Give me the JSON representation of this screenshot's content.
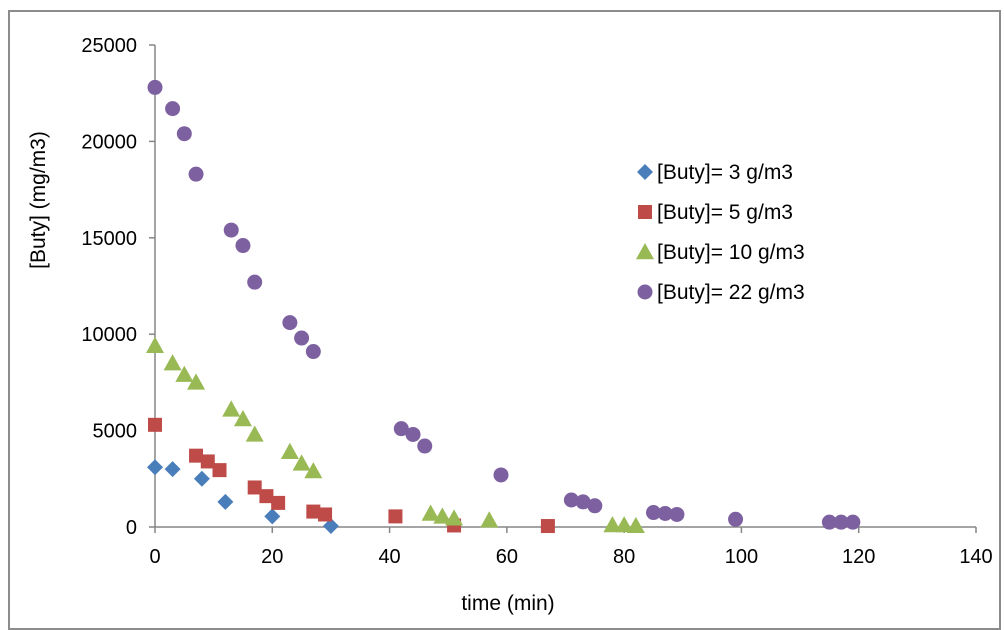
{
  "chart_data": {
    "type": "scatter",
    "title": "",
    "xlabel": "time (min)",
    "ylabel": "[Buty] (mg/m3)",
    "xlim": [
      0,
      140
    ],
    "ylim": [
      0,
      25000
    ],
    "xticks": [
      0,
      20,
      40,
      60,
      80,
      100,
      120,
      140
    ],
    "yticks": [
      0,
      5000,
      10000,
      15000,
      20000,
      25000
    ],
    "grid": false,
    "legend_position": "right",
    "series": [
      {
        "name": "[Buty]= 3 g/m3",
        "marker": "diamond",
        "color": "#4a7ebb",
        "x": [
          0,
          3,
          8,
          12,
          20,
          30
        ],
        "y": [
          3100,
          3000,
          2500,
          1300,
          550,
          50
        ]
      },
      {
        "name": "[Buty]= 5 g/m3",
        "marker": "square",
        "color": "#be4b48",
        "x": [
          0,
          7,
          9,
          11,
          17,
          19,
          21,
          27,
          29,
          41,
          51,
          67
        ],
        "y": [
          5300,
          3700,
          3400,
          2950,
          2050,
          1600,
          1250,
          800,
          650,
          550,
          80,
          50
        ]
      },
      {
        "name": "[Buty]= 10 g/m3",
        "marker": "triangle",
        "color": "#98b954",
        "x": [
          0,
          3,
          5,
          7,
          13,
          15,
          17,
          23,
          25,
          27,
          47,
          49,
          51,
          57,
          78,
          80,
          82
        ],
        "y": [
          9400,
          8500,
          7900,
          7500,
          6100,
          5600,
          4800,
          3900,
          3300,
          2900,
          700,
          550,
          450,
          350,
          100,
          100,
          60
        ]
      },
      {
        "name": "[Buty]= 22 g/m3",
        "marker": "circle",
        "color": "#7d60a0",
        "x": [
          0,
          3,
          5,
          7,
          13,
          15,
          17,
          23,
          25,
          27,
          42,
          44,
          46,
          59,
          71,
          73,
          75,
          85,
          87,
          89,
          99,
          115,
          117,
          119
        ],
        "y": [
          22800,
          21700,
          20400,
          18300,
          15400,
          14600,
          12700,
          10600,
          9800,
          9100,
          5100,
          4800,
          4200,
          2700,
          1400,
          1300,
          1100,
          750,
          700,
          650,
          400,
          250,
          250,
          250
        ]
      }
    ]
  }
}
